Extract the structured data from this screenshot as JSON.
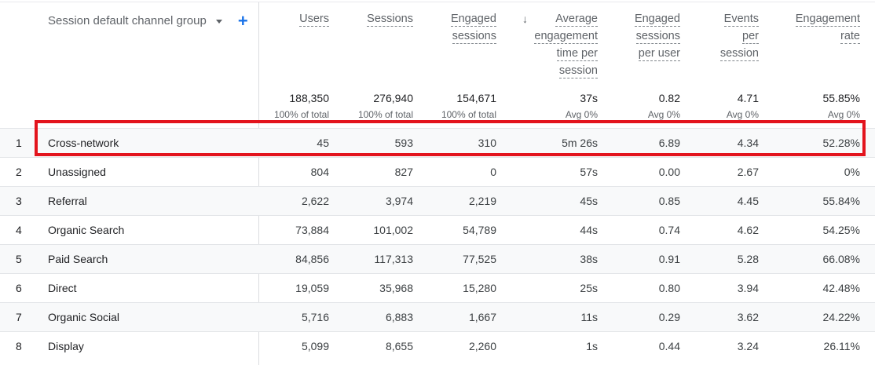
{
  "table": {
    "dimension_header": "Session default channel group",
    "add_dimension_label": "+",
    "columns": [
      {
        "key": "users",
        "title_lines": [
          "Users"
        ],
        "total": "188,350",
        "total_sub": "100% of total"
      },
      {
        "key": "sessions",
        "title_lines": [
          "Sessions"
        ],
        "total": "276,940",
        "total_sub": "100% of total"
      },
      {
        "key": "engaged_sessions",
        "title_lines": [
          "Engaged",
          "sessions"
        ],
        "total": "154,671",
        "total_sub": "100% of total"
      },
      {
        "key": "avg_engagement_time",
        "title_lines": [
          "Average",
          "engagement",
          "time per",
          "session"
        ],
        "total": "37s",
        "total_sub": "Avg 0%",
        "sorted": true,
        "sort_icon": "↓"
      },
      {
        "key": "engaged_sessions_per_user",
        "title_lines": [
          "Engaged",
          "sessions",
          "per user"
        ],
        "total": "0.82",
        "total_sub": "Avg 0%"
      },
      {
        "key": "events_per_session",
        "title_lines": [
          "Events",
          "per",
          "session"
        ],
        "total": "4.71",
        "total_sub": "Avg 0%"
      },
      {
        "key": "engagement_rate",
        "title_lines": [
          "Engagement",
          "rate"
        ],
        "total": "55.85%",
        "total_sub": "Avg 0%"
      }
    ],
    "rows": [
      {
        "idx": "1",
        "name": "Cross-network",
        "values": [
          "45",
          "593",
          "310",
          "5m 26s",
          "6.89",
          "4.34",
          "52.28%"
        ]
      },
      {
        "idx": "2",
        "name": "Unassigned",
        "values": [
          "804",
          "827",
          "0",
          "57s",
          "0.00",
          "2.67",
          "0%"
        ]
      },
      {
        "idx": "3",
        "name": "Referral",
        "values": [
          "2,622",
          "3,974",
          "2,219",
          "45s",
          "0.85",
          "4.45",
          "55.84%"
        ]
      },
      {
        "idx": "4",
        "name": "Organic Search",
        "values": [
          "73,884",
          "101,002",
          "54,789",
          "44s",
          "0.74",
          "4.62",
          "54.25%"
        ]
      },
      {
        "idx": "5",
        "name": "Paid Search",
        "values": [
          "84,856",
          "117,313",
          "77,525",
          "38s",
          "0.91",
          "5.28",
          "66.08%"
        ]
      },
      {
        "idx": "6",
        "name": "Direct",
        "values": [
          "19,059",
          "35,968",
          "15,280",
          "25s",
          "0.80",
          "3.94",
          "42.48%"
        ]
      },
      {
        "idx": "7",
        "name": "Organic Social",
        "values": [
          "5,716",
          "6,883",
          "1,667",
          "11s",
          "0.29",
          "3.62",
          "24.22%"
        ]
      },
      {
        "idx": "8",
        "name": "Display",
        "values": [
          "5,099",
          "8,655",
          "2,260",
          "1s",
          "0.44",
          "3.24",
          "26.11%"
        ]
      }
    ]
  },
  "highlight": {
    "color": "#e3141d",
    "row_index": 0
  }
}
